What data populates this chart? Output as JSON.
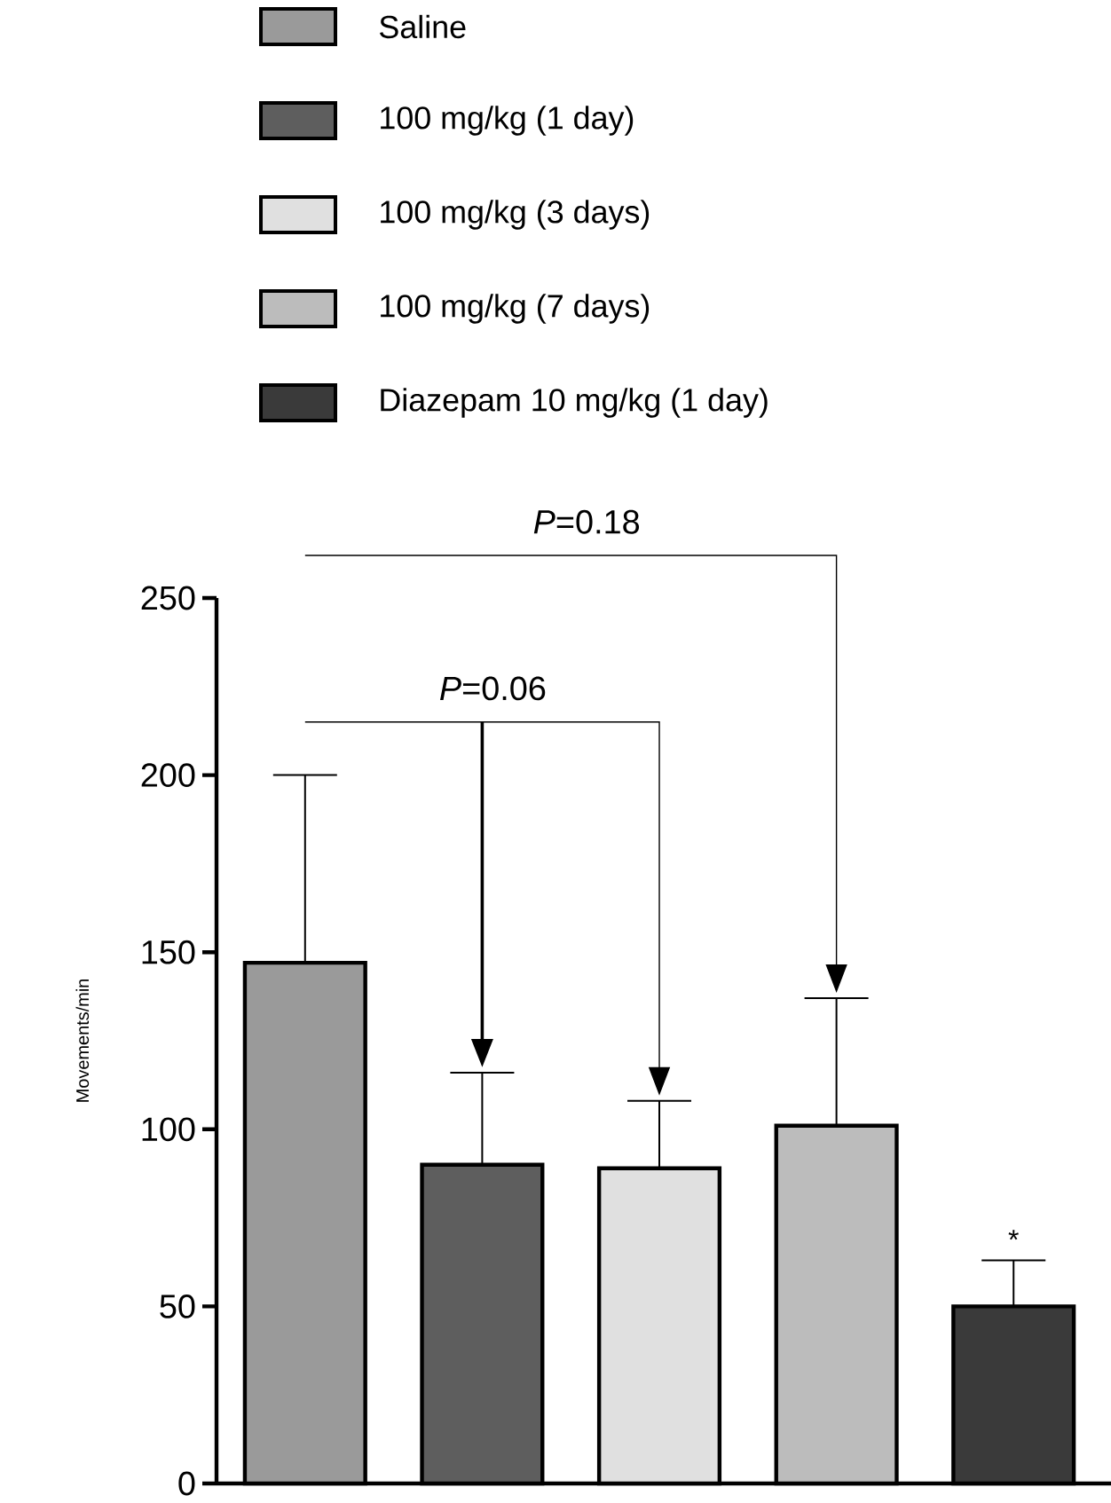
{
  "chart_data": {
    "type": "bar",
    "ylabel": "Movements/min",
    "categories": [
      null,
      null,
      null,
      null,
      null
    ],
    "series": [
      {
        "name": "Saline",
        "color": "#9a9a9a",
        "values": [
          147,
          null,
          null,
          null,
          null
        ],
        "errors": [
          [
            147,
            200
          ],
          null,
          null,
          null,
          null
        ]
      },
      {
        "name": "100 mg/kg (1 day)",
        "color": "#5e5e5e",
        "values": [
          null,
          90,
          null,
          null,
          null
        ],
        "errors": [
          null,
          [
            90,
            116
          ],
          null,
          null,
          null
        ]
      },
      {
        "name": "100 mg/kg (3 days)",
        "color": "#e0e0e0",
        "values": [
          null,
          null,
          89,
          null,
          null
        ],
        "errors": [
          null,
          null,
          [
            89,
            108
          ],
          null,
          null
        ]
      },
      {
        "name": "100 mg/kg (7 days)",
        "color": "#bcbcbc",
        "values": [
          null,
          null,
          null,
          101,
          null
        ],
        "errors": [
          null,
          null,
          null,
          [
            101,
            137
          ],
          null
        ]
      },
      {
        "name": "Diazepam 10 mg/kg (1 day)",
        "color": "#3a3a3a",
        "values": [
          null,
          null,
          null,
          null,
          50
        ],
        "errors": [
          null,
          null,
          null,
          null,
          [
            50,
            63
          ]
        ]
      }
    ],
    "ylim": [
      0,
      250
    ],
    "yticks": [
      0,
      50,
      100,
      150,
      200,
      250
    ],
    "grid": false,
    "legend": "top",
    "stacked": true,
    "annotations": [
      "*P*=0.18",
      "*P*=0.06",
      "*"
    ]
  }
}
